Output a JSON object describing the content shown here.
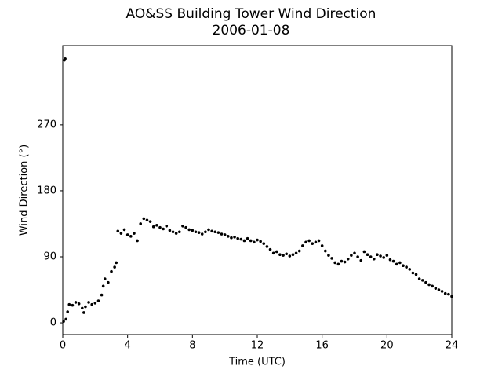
{
  "chart_data": {
    "type": "scatter",
    "title": "AO&SS Building Tower Wind Direction",
    "subtitle": "2006-01-08",
    "x_label": "Time (UTC)",
    "y_label": "Wind Direction (°)",
    "xlim": [
      0,
      24
    ],
    "xticks": [
      0,
      4,
      8,
      12,
      16,
      20,
      24
    ],
    "ylim": [
      -16,
      378
    ],
    "yticks": [
      0,
      90,
      180,
      270
    ],
    "series": [
      {
        "color": "#000000",
        "x": [
          0.05,
          0.1,
          0.15,
          0.2,
          0.3,
          0.4,
          0.6,
          0.8,
          1.0,
          1.2,
          1.3,
          1.4,
          1.6,
          1.8,
          2.0,
          2.2,
          2.4,
          2.5,
          2.6,
          2.8,
          3.0,
          3.2,
          3.3,
          3.4,
          3.6,
          3.8,
          4.0,
          4.2,
          4.4,
          4.6,
          4.8,
          5.0,
          5.2,
          5.4,
          5.6,
          5.8,
          6.0,
          6.2,
          6.4,
          6.6,
          6.8,
          7.0,
          7.2,
          7.4,
          7.6,
          7.8,
          8.0,
          8.2,
          8.4,
          8.6,
          8.8,
          9.0,
          9.2,
          9.4,
          9.6,
          9.8,
          10.0,
          10.2,
          10.4,
          10.6,
          10.8,
          11.0,
          11.2,
          11.4,
          11.6,
          11.8,
          12.0,
          12.2,
          12.4,
          12.6,
          12.8,
          13.0,
          13.2,
          13.4,
          13.6,
          13.8,
          14.0,
          14.2,
          14.4,
          14.6,
          14.8,
          15.0,
          15.2,
          15.4,
          15.6,
          15.8,
          16.0,
          16.2,
          16.4,
          16.6,
          16.8,
          17.0,
          17.2,
          17.4,
          17.6,
          17.8,
          18.0,
          18.2,
          18.4,
          18.6,
          18.8,
          19.0,
          19.2,
          19.4,
          19.6,
          19.8,
          20.0,
          20.2,
          20.4,
          20.6,
          20.8,
          21.0,
          21.2,
          21.4,
          21.6,
          21.8,
          22.0,
          22.2,
          22.4,
          22.6,
          22.8,
          23.0,
          23.2,
          23.4,
          23.6,
          23.8,
          24.0
        ],
        "values": [
          2,
          358,
          360,
          5,
          15,
          25,
          24,
          28,
          26,
          20,
          14,
          22,
          28,
          25,
          27,
          30,
          38,
          50,
          60,
          55,
          70,
          76,
          82,
          125,
          122,
          127,
          120,
          118,
          122,
          112,
          135,
          142,
          140,
          138,
          131,
          133,
          130,
          128,
          132,
          126,
          124,
          122,
          124,
          132,
          130,
          127,
          126,
          124,
          123,
          121,
          124,
          127,
          125,
          124,
          123,
          121,
          120,
          118,
          116,
          117,
          115,
          114,
          112,
          115,
          112,
          110,
          113,
          111,
          108,
          104,
          100,
          95,
          97,
          93,
          92,
          94,
          91,
          93,
          95,
          98,
          105,
          110,
          112,
          108,
          110,
          112,
          105,
          98,
          92,
          88,
          82,
          80,
          84,
          83,
          87,
          92,
          95,
          90,
          85,
          97,
          93,
          90,
          87,
          93,
          91,
          89,
          92,
          86,
          84,
          80,
          82,
          78,
          76,
          73,
          68,
          66,
          60,
          58,
          55,
          52,
          50,
          47,
          45,
          43,
          40,
          39,
          36
        ]
      }
    ]
  }
}
